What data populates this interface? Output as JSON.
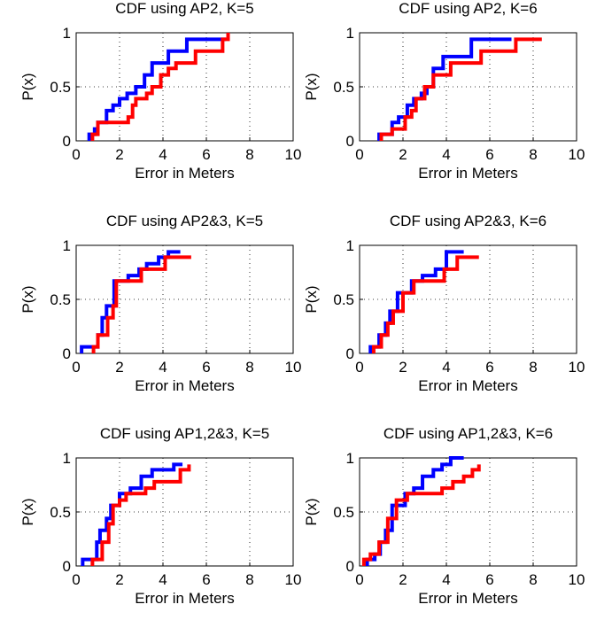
{
  "colors": {
    "blue": "#0000ff",
    "red": "#ff0000",
    "axis": "#000000",
    "grid": "#000000",
    "background": "#ffffff"
  },
  "chart_data": [
    {
      "type": "line",
      "step": true,
      "grid": true,
      "title": "CDF using AP2, K=5",
      "xlabel": "Error in Meters",
      "ylabel": "P(x)",
      "xlim": [
        0,
        10
      ],
      "ylim": [
        0,
        1
      ],
      "xticks": [
        "0",
        "2",
        "4",
        "6",
        "8",
        "10"
      ],
      "yticks": [
        "0",
        "0.5",
        "1"
      ],
      "series": [
        {
          "color": "blue",
          "x": [
            0.6,
            0.85,
            1.0,
            1.4,
            1.7,
            2.0,
            2.35,
            2.75,
            3.15,
            3.5,
            4.25,
            5.1,
            6.9
          ],
          "y": [
            0.06,
            0.11,
            0.17,
            0.28,
            0.33,
            0.39,
            0.44,
            0.5,
            0.61,
            0.72,
            0.83,
            0.94,
            0.94
          ]
        },
        {
          "color": "red",
          "x": [
            0.75,
            1.0,
            2.4,
            2.6,
            2.75,
            3.25,
            3.5,
            3.9,
            4.25,
            4.6,
            5.5,
            6.75,
            7.0
          ],
          "y": [
            0.06,
            0.17,
            0.22,
            0.33,
            0.39,
            0.44,
            0.5,
            0.61,
            0.67,
            0.72,
            0.83,
            0.94,
            1.0
          ]
        }
      ]
    },
    {
      "type": "line",
      "step": true,
      "grid": true,
      "title": "CDF using AP2, K=6",
      "xlabel": "Error in Meters",
      "ylabel": "P(x)",
      "xlim": [
        0,
        10
      ],
      "ylim": [
        0,
        1
      ],
      "xticks": [
        "0",
        "2",
        "4",
        "6",
        "8",
        "10"
      ],
      "yticks": [
        "0",
        "0.5",
        "1"
      ],
      "series": [
        {
          "color": "blue",
          "x": [
            0.9,
            1.5,
            1.8,
            2.2,
            2.5,
            2.85,
            3.1,
            3.4,
            3.85,
            4.15,
            5.15,
            7.0
          ],
          "y": [
            0.06,
            0.17,
            0.22,
            0.33,
            0.39,
            0.44,
            0.5,
            0.67,
            0.78,
            0.78,
            0.94,
            0.94
          ]
        },
        {
          "color": "red",
          "x": [
            1.0,
            1.5,
            2.1,
            2.4,
            2.6,
            3.0,
            3.4,
            4.2,
            5.6,
            6.1,
            7.2,
            8.4
          ],
          "y": [
            0.06,
            0.11,
            0.22,
            0.28,
            0.39,
            0.5,
            0.61,
            0.72,
            0.83,
            0.83,
            0.94,
            0.94
          ]
        }
      ]
    },
    {
      "type": "line",
      "step": true,
      "grid": true,
      "title": "CDF using AP2&3, K=5",
      "xlabel": "Error in Meters",
      "ylabel": "P(x)",
      "xlim": [
        0,
        10
      ],
      "ylim": [
        0,
        1
      ],
      "xticks": [
        "0",
        "2",
        "4",
        "6",
        "8",
        "10"
      ],
      "yticks": [
        "0",
        "0.5",
        "1"
      ],
      "series": [
        {
          "color": "blue",
          "x": [
            0.25,
            1.0,
            1.2,
            1.4,
            1.75,
            2.4,
            2.9,
            3.25,
            3.8,
            4.25,
            4.8
          ],
          "y": [
            0.06,
            0.17,
            0.33,
            0.44,
            0.67,
            0.72,
            0.78,
            0.83,
            0.89,
            0.94,
            0.94
          ]
        },
        {
          "color": "red",
          "x": [
            0.8,
            1.0,
            1.45,
            1.7,
            1.85,
            2.75,
            3.0,
            4.1,
            5.3
          ],
          "y": [
            0.06,
            0.17,
            0.33,
            0.44,
            0.67,
            0.67,
            0.78,
            0.89,
            0.89
          ]
        }
      ]
    },
    {
      "type": "line",
      "step": true,
      "grid": true,
      "title": "CDF using AP2&3, K=6",
      "xlabel": "Error in Meters",
      "ylabel": "P(x)",
      "xlim": [
        0,
        10
      ],
      "ylim": [
        0,
        1
      ],
      "xticks": [
        "0",
        "2",
        "4",
        "6",
        "8",
        "10"
      ],
      "yticks": [
        "0",
        "0.5",
        "1"
      ],
      "series": [
        {
          "color": "blue",
          "x": [
            0.5,
            0.9,
            1.2,
            1.4,
            1.75,
            2.4,
            2.9,
            3.5,
            4.0,
            4.8
          ],
          "y": [
            0.06,
            0.17,
            0.28,
            0.39,
            0.56,
            0.67,
            0.72,
            0.78,
            0.94,
            0.94
          ]
        },
        {
          "color": "red",
          "x": [
            0.65,
            1.0,
            1.3,
            1.55,
            2.0,
            2.5,
            3.25,
            3.9,
            4.5,
            5.5
          ],
          "y": [
            0.06,
            0.17,
            0.28,
            0.39,
            0.56,
            0.67,
            0.67,
            0.78,
            0.89,
            0.89
          ]
        }
      ]
    },
    {
      "type": "line",
      "step": true,
      "grid": true,
      "title": "CDF using AP1,2&3, K=5",
      "xlabel": "Error in Meters",
      "ylabel": "P(x)",
      "xlim": [
        0,
        10
      ],
      "ylim": [
        0,
        1
      ],
      "xticks": [
        "0",
        "2",
        "4",
        "6",
        "8",
        "10"
      ],
      "yticks": [
        "0",
        "0.5",
        "1"
      ],
      "series": [
        {
          "color": "blue",
          "x": [
            0.3,
            0.95,
            1.1,
            1.4,
            1.6,
            2.0,
            2.5,
            3.0,
            3.5,
            4.5,
            4.9
          ],
          "y": [
            0.06,
            0.22,
            0.33,
            0.44,
            0.56,
            0.67,
            0.72,
            0.83,
            0.89,
            0.94,
            0.94
          ]
        },
        {
          "color": "red",
          "x": [
            0.75,
            1.2,
            1.5,
            1.7,
            2.0,
            2.3,
            3.2,
            3.6,
            4.8,
            5.2
          ],
          "y": [
            0.06,
            0.22,
            0.39,
            0.56,
            0.61,
            0.67,
            0.72,
            0.78,
            0.89,
            0.94
          ]
        }
      ]
    },
    {
      "type": "line",
      "step": true,
      "grid": true,
      "title": "CDF using AP1,2&3, K=6",
      "xlabel": "Error in Meters",
      "ylabel": "P(x)",
      "xlim": [
        0,
        10
      ],
      "ylim": [
        0,
        1
      ],
      "xticks": [
        "0",
        "2",
        "4",
        "6",
        "8",
        "10"
      ],
      "yticks": [
        "0",
        "0.5",
        "1"
      ],
      "series": [
        {
          "color": "blue",
          "x": [
            0.35,
            0.7,
            0.95,
            1.2,
            1.5,
            2.1,
            2.5,
            2.9,
            3.4,
            3.8,
            4.2,
            4.8
          ],
          "y": [
            0.06,
            0.11,
            0.22,
            0.33,
            0.56,
            0.67,
            0.72,
            0.83,
            0.89,
            0.94,
            1.0,
            1.0
          ]
        },
        {
          "color": "red",
          "x": [
            0.2,
            0.5,
            0.9,
            1.3,
            1.7,
            2.2,
            3.8,
            4.3,
            4.8,
            5.2,
            5.5
          ],
          "y": [
            0.06,
            0.11,
            0.22,
            0.44,
            0.61,
            0.67,
            0.72,
            0.78,
            0.83,
            0.89,
            0.94
          ]
        }
      ]
    }
  ]
}
